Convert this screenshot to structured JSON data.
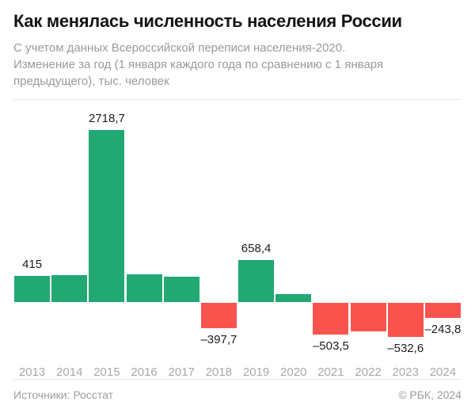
{
  "header": {
    "title": "Как менялась численность населения России",
    "subtitle_line1": "С учетом данных Всероссийской переписи населения-2020.",
    "subtitle_line2": "Изменение за год (1 января каждого года по сравнению с 1 января предыдущего), тыс. человек"
  },
  "chart_data": {
    "type": "bar",
    "title": "Как менялась численность населения России",
    "subtitle": "С учетом данных Всероссийской переписи населения-2020. Изменение за год (1 января каждого года по сравнению с 1 января предыдущего), тыс. человек",
    "unit": "тыс. человек",
    "categories": [
      "2013",
      "2014",
      "2015",
      "2016",
      "2017",
      "2018",
      "2019",
      "2020",
      "2021",
      "2022",
      "2023",
      "2024"
    ],
    "values": [
      415,
      430,
      2718.7,
      435,
      395,
      -397.7,
      658.4,
      130,
      -503.5,
      -450,
      -532.6,
      -243.8
    ],
    "labels": [
      "415",
      "",
      "2718,7",
      "",
      "",
      "–397,7",
      "658,4",
      "",
      "–503,5",
      "",
      "–532,6",
      "–243,8"
    ],
    "labeled_values_note": "unlabeled bars estimated from pixel heights",
    "positive_color": "#21a873",
    "negative_color": "#f9534e",
    "baseline": 0,
    "ylim": [
      -600,
      2800
    ],
    "grid": false,
    "legend": false
  },
  "footer": {
    "source": "Источники: Росстат",
    "copyright": "© РБК, 2024"
  }
}
